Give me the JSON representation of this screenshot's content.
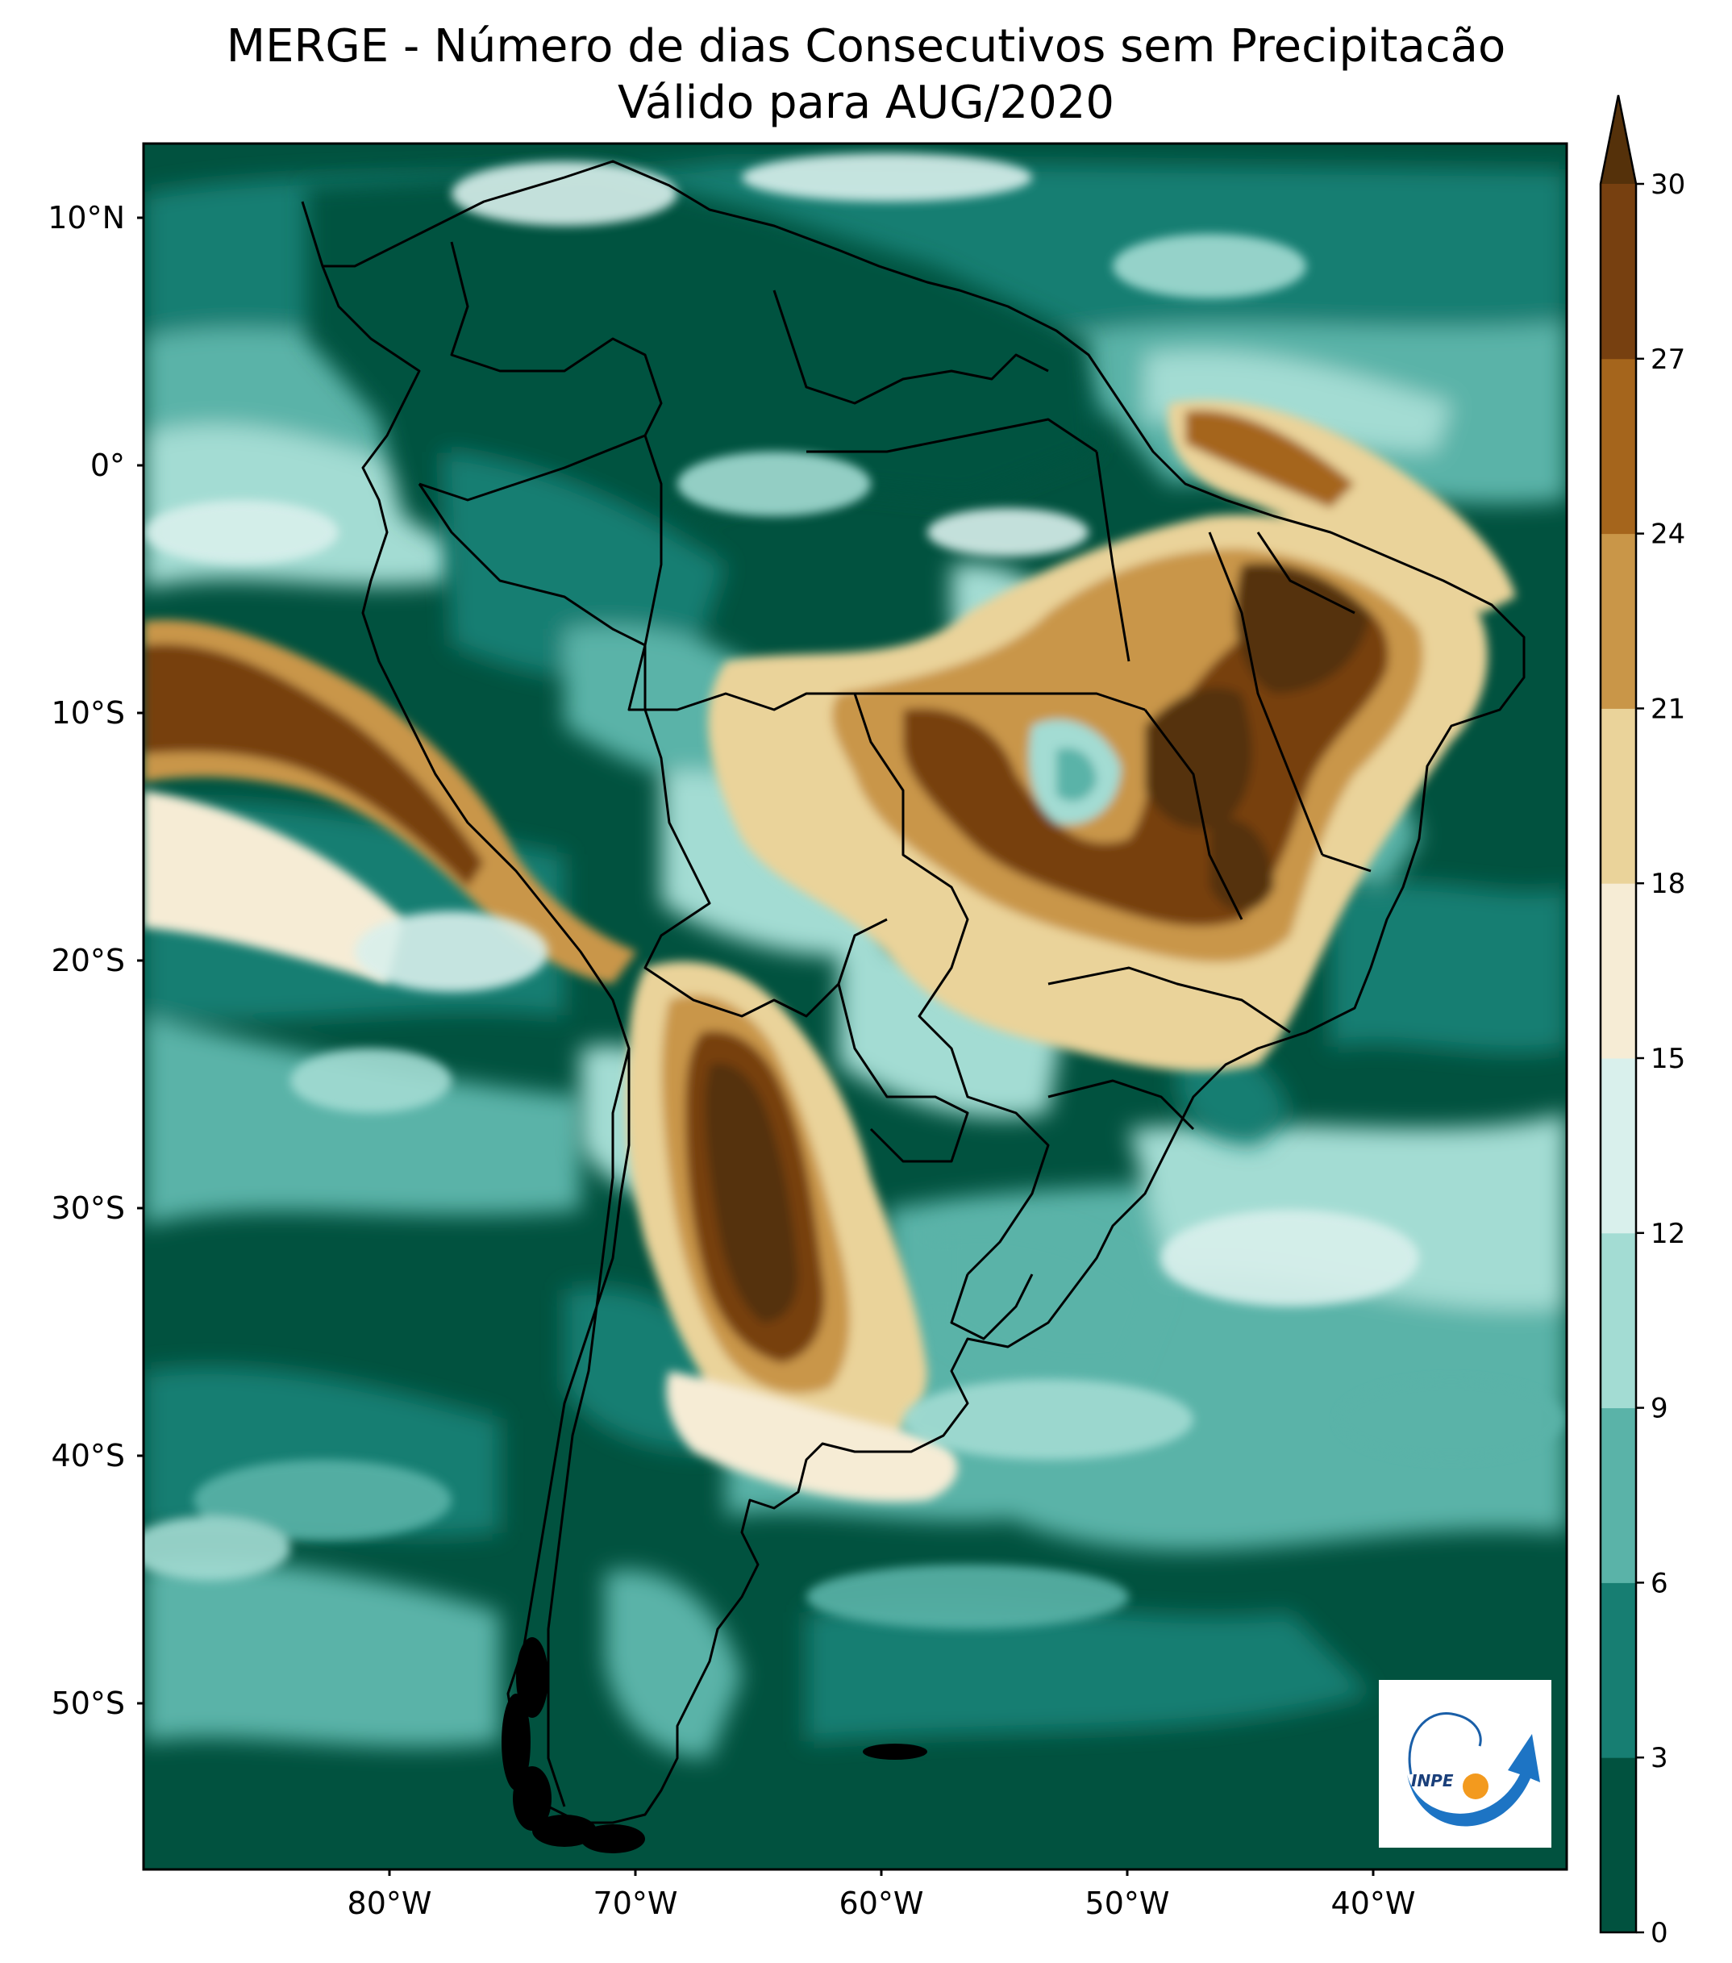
{
  "title": {
    "line1": "MERGE - Número de dias Consecutivos sem Precipitacão",
    "line2": "Válido para AUG/2020"
  },
  "map": {
    "lat_ticks": [
      "10°N",
      "0°",
      "10°S",
      "20°S",
      "30°S",
      "40°S",
      "50°S"
    ],
    "lon_ticks": [
      "80°W",
      "70°W",
      "60°W",
      "50°W",
      "40°W"
    ],
    "lat_range": [
      -57,
      13
    ],
    "lon_range": [
      -90,
      -32
    ]
  },
  "colorbar": {
    "labels": [
      "0",
      "3",
      "6",
      "9",
      "12",
      "15",
      "18",
      "21",
      "24",
      "27",
      "30"
    ],
    "colors": [
      "#01523f",
      "#177e72",
      "#5ab3a8",
      "#a3dcd3",
      "#d9f0ec",
      "#f6ecd5",
      "#ead39a",
      "#c99648",
      "#a5651c",
      "#774010",
      "#55310a"
    ],
    "extend": "max"
  },
  "logo": {
    "text": "INPE"
  }
}
